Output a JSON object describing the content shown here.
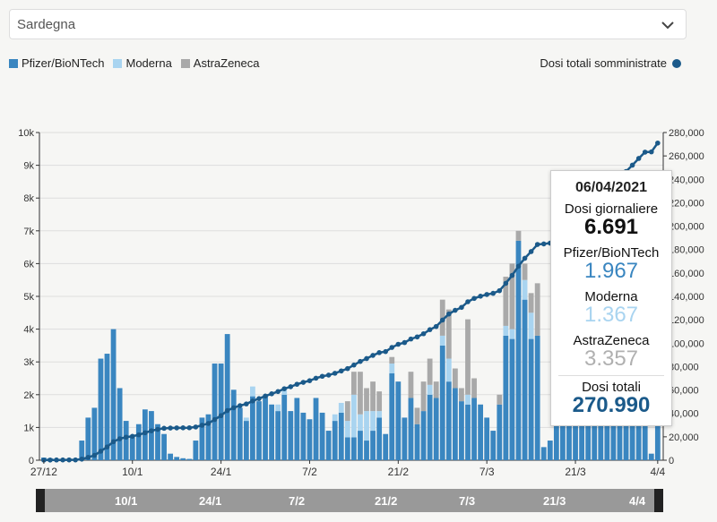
{
  "region_select": {
    "value": "Sardegna"
  },
  "legend": {
    "items": [
      {
        "label": "Pfizer/BioNTech",
        "color": "#3a86c0"
      },
      {
        "label": "Moderna",
        "color": "#a9d4f0"
      },
      {
        "label": "AstraZeneca",
        "color": "#a9a9a9"
      }
    ],
    "total_label": "Dosi totali somministrate",
    "total_color": "#1b5a8a"
  },
  "tooltip": {
    "date": "06/04/2021",
    "daily_label": "Dosi giornaliere",
    "daily_value": "6.691",
    "pfizer_label": "Pfizer/BioNTech",
    "pfizer_value": "1.967",
    "moderna_label": "Moderna",
    "moderna_value": "1.367",
    "astra_label": "AstraZeneca",
    "astra_value": "3.357",
    "total_label": "Dosi totali",
    "total_value": "270.990"
  },
  "scroller": {
    "labels": [
      "10/1",
      "24/1",
      "7/2",
      "21/2",
      "7/3",
      "21/3",
      "4/4"
    ]
  },
  "chart_data": {
    "type": "bar",
    "x_ticks": [
      "27/12",
      "10/1",
      "24/1",
      "7/2",
      "21/2",
      "7/3",
      "21/3",
      "4/4"
    ],
    "y_left": {
      "ylim": [
        0,
        10000
      ],
      "ticks": [
        "0",
        "1k",
        "2k",
        "3k",
        "4k",
        "5k",
        "6k",
        "7k",
        "8k",
        "9k",
        "10k"
      ]
    },
    "y_right": {
      "ylim": [
        0,
        280000
      ],
      "ticks": [
        "0",
        "20,000",
        "40,000",
        "60,000",
        "80,000",
        "100,000",
        "120,000",
        "140,000",
        "160,000",
        "180,000",
        "200,000",
        "220,000",
        "240,000",
        "260,000",
        "280,000"
      ]
    },
    "grid": true,
    "series": [
      {
        "name": "Pfizer/BioNTech",
        "values": [
          80,
          60,
          40,
          30,
          20,
          10,
          600,
          1300,
          1600,
          3100,
          3250,
          4000,
          2200,
          1200,
          700,
          1100,
          1550,
          1500,
          1100,
          800,
          200,
          100,
          60,
          40,
          600,
          1300,
          1400,
          2950,
          2950,
          3850,
          2150,
          1600,
          1200,
          1950,
          1800,
          1950,
          1700,
          1500,
          2000,
          1500,
          1900,
          1450,
          1250,
          1900,
          1450,
          900,
          1200,
          1450,
          700,
          700,
          900,
          600,
          900,
          1300,
          800,
          2650,
          2400,
          1300,
          1900,
          1100,
          1500,
          2000,
          1900,
          3500,
          2400,
          2200,
          1800,
          1700,
          1900,
          1700,
          1300,
          900,
          1700,
          3800,
          3700,
          6700,
          4900,
          3700,
          3800,
          400,
          600,
          2700,
          5000,
          6600,
          7200,
          7000,
          2900,
          1300,
          2700,
          4900,
          4700,
          4600,
          4500,
          4800,
          5100,
          4800,
          200,
          1967
        ]
      },
      {
        "name": "Moderna",
        "values": [
          0,
          0,
          0,
          0,
          0,
          0,
          0,
          0,
          0,
          0,
          0,
          0,
          0,
          0,
          0,
          0,
          0,
          0,
          0,
          0,
          0,
          0,
          0,
          0,
          0,
          0,
          0,
          0,
          0,
          0,
          0,
          0,
          100,
          300,
          0,
          0,
          0,
          200,
          150,
          0,
          0,
          0,
          0,
          0,
          0,
          0,
          200,
          300,
          500,
          1300,
          500,
          900,
          600,
          200,
          0,
          300,
          0,
          0,
          0,
          0,
          0,
          300,
          0,
          300,
          700,
          0,
          0,
          300,
          0,
          0,
          0,
          0,
          0,
          300,
          300,
          0,
          600,
          800,
          0,
          0,
          0,
          0,
          0,
          300,
          0,
          0,
          0,
          0,
          0,
          0,
          0,
          0,
          0,
          0,
          0,
          0,
          0,
          1367
        ]
      },
      {
        "name": "AstraZeneca",
        "values": [
          0,
          0,
          0,
          0,
          0,
          0,
          0,
          0,
          0,
          0,
          0,
          0,
          0,
          0,
          0,
          0,
          0,
          0,
          0,
          0,
          0,
          0,
          0,
          0,
          0,
          0,
          0,
          0,
          0,
          0,
          0,
          0,
          0,
          0,
          0,
          0,
          0,
          0,
          0,
          0,
          0,
          0,
          0,
          0,
          0,
          0,
          0,
          0,
          600,
          700,
          1300,
          700,
          900,
          600,
          0,
          200,
          0,
          0,
          800,
          500,
          900,
          800,
          500,
          1100,
          1500,
          600,
          400,
          2300,
          600,
          0,
          0,
          0,
          300,
          1500,
          2000,
          300,
          500,
          600,
          1600,
          0,
          0,
          0,
          0,
          0,
          0,
          0,
          0,
          0,
          0,
          0,
          0,
          0,
          0,
          0,
          0,
          0,
          0,
          3357
        ]
      }
    ],
    "line": {
      "name": "Dosi totali somministrate",
      "end_value": 270990
    }
  }
}
